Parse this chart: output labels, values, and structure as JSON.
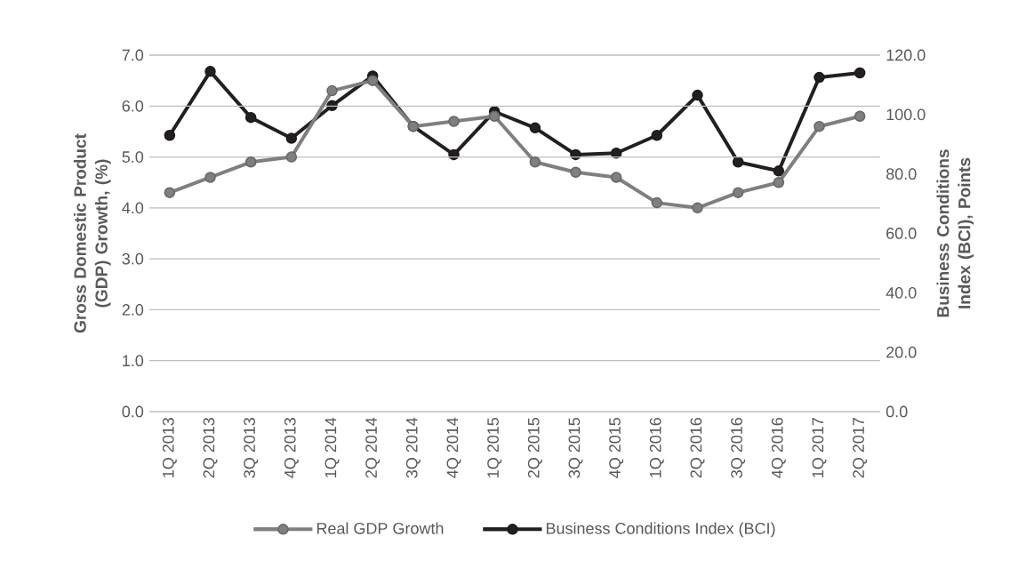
{
  "chart_data": {
    "type": "line",
    "categories": [
      "1Q 2013",
      "2Q 2013",
      "3Q 2013",
      "4Q 2013",
      "1Q 2014",
      "2Q 2014",
      "3Q 2014",
      "4Q 2014",
      "1Q 2015",
      "2Q 2015",
      "3Q 2015",
      "4Q 2015",
      "1Q 2016",
      "2Q 2016",
      "3Q 2016",
      "4Q 2016",
      "1Q 2017",
      "2Q 2017"
    ],
    "series": [
      {
        "name": "Real GDP Growth",
        "color": "#7f7f7f",
        "values": [
          4.3,
          4.6,
          4.9,
          5.0,
          6.3,
          6.5,
          5.6,
          5.7,
          5.8,
          4.9,
          4.7,
          4.6,
          4.1,
          4.0,
          4.3,
          4.5,
          5.6,
          5.8
        ]
      },
      {
        "name": "Business Conditions Index (BCI)",
        "color": "#231f20",
        "axis": "y2",
        "values": [
          93,
          114.5,
          99,
          92,
          103,
          113,
          96,
          86.5,
          101,
          95.5,
          86.5,
          87,
          93,
          106.5,
          84,
          81,
          112.5,
          114
        ]
      }
    ],
    "ylabel": "Gross Domestic Product (GDP) Growth, (%)",
    "y2label": "Business Conditions Index (BCI), Points",
    "ylim": [
      0,
      7
    ],
    "yticks": [
      {
        "value": 0,
        "label": "0.0"
      },
      {
        "value": 1,
        "label": "1.0"
      },
      {
        "value": 2,
        "label": "2.0"
      },
      {
        "value": 3,
        "label": "3.0"
      },
      {
        "value": 4,
        "label": "4.0"
      },
      {
        "value": 5,
        "label": "5.0"
      },
      {
        "value": 6,
        "label": "6.0"
      },
      {
        "value": 7,
        "label": "7.0"
      }
    ],
    "y2lim": [
      0,
      120
    ],
    "y2ticks": [
      {
        "value": 0,
        "label": "0.0"
      },
      {
        "value": 20,
        "label": "20.0"
      },
      {
        "value": 40,
        "label": "40.0"
      },
      {
        "value": 60,
        "label": "60.0"
      },
      {
        "value": 80,
        "label": "80.0"
      },
      {
        "value": 100,
        "label": "100.0"
      },
      {
        "value": 120,
        "label": "120.0"
      }
    ],
    "grid": "y",
    "legend": "bottom",
    "marker": "circle",
    "line_style": "solid"
  }
}
